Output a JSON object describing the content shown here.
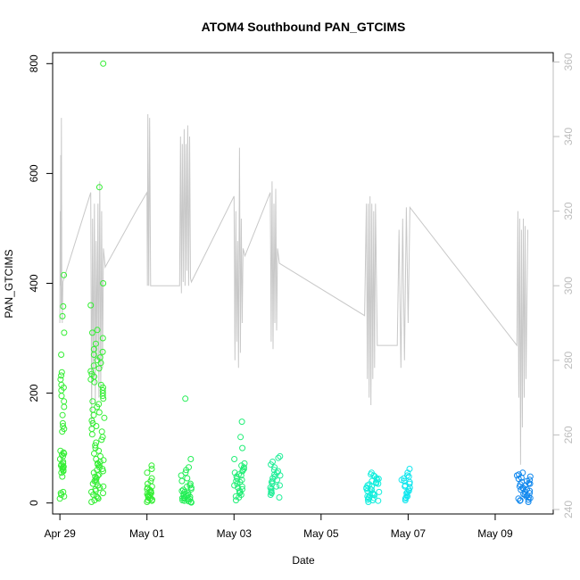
{
  "chart_data": {
    "type": "scatter",
    "title": "ATOM4 Southbound PAN_GTCIMS",
    "xlabel": "Date",
    "ylabel": "PAN_GTCIMS",
    "x_axis": {
      "type": "date",
      "range": [
        "2016-04-28T20:00",
        "2016-05-10T08:00"
      ],
      "ticks": [
        {
          "date": "2016-04-29",
          "label": "Apr 29"
        },
        {
          "date": "2016-05-01",
          "label": "May 01"
        },
        {
          "date": "2016-05-03",
          "label": "May 03"
        },
        {
          "date": "2016-05-05",
          "label": "May 05"
        },
        {
          "date": "2016-05-07",
          "label": "May 07"
        },
        {
          "date": "2016-05-09",
          "label": "May 09"
        }
      ]
    },
    "y_left": {
      "range": [
        -20,
        820
      ],
      "ticks": [
        0,
        200,
        400,
        600,
        800
      ]
    },
    "y_right": {
      "range": [
        238.8,
        362.5
      ],
      "ticks": [
        240,
        260,
        280,
        300,
        320,
        340,
        360
      ],
      "color": "#bdbdbd"
    },
    "grid": false,
    "legend": "none",
    "point_marker": "open-circle",
    "clusters": [
      {
        "start": "2016-04-29T00:00",
        "end": "2016-04-29T02:30",
        "color": "#33ee33",
        "values": [
          8,
          12,
          15,
          18,
          20,
          48,
          55,
          58,
          60,
          62,
          64,
          65,
          66,
          68,
          70,
          72,
          75,
          80,
          85,
          88,
          90,
          92,
          95,
          130,
          135,
          140,
          145,
          160,
          175,
          185,
          195,
          205,
          210,
          215,
          225,
          232,
          238,
          270,
          310,
          340,
          358,
          415
        ]
      },
      {
        "start": "2016-04-29T17:00",
        "end": "2016-04-30T00:30",
        "color": "#33ee33",
        "values": [
          2,
          5,
          8,
          10,
          12,
          15,
          18,
          20,
          22,
          25,
          28,
          30,
          32,
          35,
          38,
          40,
          42,
          45,
          48,
          50,
          52,
          55,
          58,
          60,
          62,
          65,
          68,
          70,
          72,
          75,
          78,
          80,
          85,
          90,
          95,
          100,
          105,
          110,
          115,
          120,
          125,
          130,
          135,
          140,
          145,
          150,
          155,
          160,
          165,
          170,
          175,
          180,
          185,
          190,
          195,
          200,
          205,
          210,
          215,
          220,
          225,
          230,
          235,
          240,
          245,
          250,
          255,
          260,
          265,
          270,
          275,
          280,
          290,
          300,
          310,
          315,
          360,
          400,
          575,
          800
        ]
      },
      {
        "start": "2016-05-01T00:00",
        "end": "2016-05-01T03:00",
        "color": "#33ee33",
        "values": [
          2,
          4,
          5,
          6,
          8,
          9,
          10,
          12,
          14,
          15,
          16,
          18,
          20,
          22,
          24,
          25,
          28,
          30,
          35,
          40,
          45,
          55,
          62,
          68
        ]
      },
      {
        "start": "2016-05-01T18:00",
        "end": "2016-05-02T00:30",
        "color": "#22ee55",
        "values": [
          1,
          2,
          3,
          4,
          5,
          6,
          7,
          8,
          9,
          10,
          11,
          12,
          13,
          14,
          15,
          16,
          18,
          20,
          22,
          24,
          25,
          28,
          30,
          32,
          35,
          40,
          45,
          50,
          55,
          60,
          65,
          80,
          190
        ]
      },
      {
        "start": "2016-05-03T00:00",
        "end": "2016-05-03T06:00",
        "color": "#22ee77",
        "values": [
          5,
          10,
          12,
          15,
          18,
          20,
          22,
          25,
          28,
          30,
          32,
          35,
          38,
          40,
          42,
          45,
          48,
          50,
          52,
          55,
          58,
          60,
          62,
          65,
          68,
          72,
          80,
          100,
          120,
          148
        ]
      },
      {
        "start": "2016-05-03T20:00",
        "end": "2016-05-04T01:30",
        "color": "#22ee99",
        "values": [
          10,
          15,
          18,
          20,
          22,
          25,
          28,
          30,
          32,
          35,
          38,
          40,
          42,
          45,
          48,
          50,
          52,
          55,
          58,
          60,
          65,
          70,
          75,
          82,
          85
        ]
      },
      {
        "start": "2016-05-06T01:00",
        "end": "2016-05-06T08:00",
        "color": "#11eedd",
        "values": [
          2,
          4,
          5,
          6,
          8,
          9,
          10,
          12,
          14,
          15,
          16,
          18,
          20,
          22,
          24,
          25,
          26,
          28,
          30,
          32,
          34,
          35,
          36,
          38,
          40,
          42,
          44,
          45,
          48,
          50,
          52,
          55
        ]
      },
      {
        "start": "2016-05-06T20:00",
        "end": "2016-05-07T01:00",
        "color": "#11e6ee",
        "values": [
          5,
          8,
          10,
          12,
          15,
          18,
          20,
          22,
          25,
          28,
          30,
          32,
          35,
          38,
          40,
          42,
          45,
          48,
          50,
          55,
          62
        ]
      },
      {
        "start": "2016-05-09T12:00",
        "end": "2016-05-09T20:00",
        "color": "#1188ee",
        "values": [
          2,
          4,
          5,
          6,
          8,
          9,
          10,
          12,
          14,
          15,
          16,
          18,
          20,
          22,
          24,
          25,
          26,
          28,
          30,
          32,
          34,
          35,
          36,
          38,
          40,
          42,
          44,
          46,
          48,
          50,
          52,
          55
        ]
      }
    ],
    "line_series": {
      "axis": "right",
      "color": "#c8c8c8",
      "points": [
        [
          "2016-04-29T00:00",
          290
        ],
        [
          "2016-04-29T00:10",
          320
        ],
        [
          "2016-04-29T00:20",
          300
        ],
        [
          "2016-04-29T00:30",
          335
        ],
        [
          "2016-04-29T00:40",
          295
        ],
        [
          "2016-04-29T00:50",
          345
        ],
        [
          "2016-04-29T01:05",
          300
        ],
        [
          "2016-04-29T01:20",
          290
        ],
        [
          "2016-04-29T01:40",
          301
        ],
        [
          "2016-04-29T17:00",
          325
        ],
        [
          "2016-04-29T17:30",
          262
        ],
        [
          "2016-04-29T18:00",
          318
        ],
        [
          "2016-04-29T18:30",
          275
        ],
        [
          "2016-04-29T19:00",
          322
        ],
        [
          "2016-04-29T19:30",
          268
        ],
        [
          "2016-04-29T20:00",
          312
        ],
        [
          "2016-04-29T20:30",
          280
        ],
        [
          "2016-04-29T21:00",
          322
        ],
        [
          "2016-04-29T21:30",
          270
        ],
        [
          "2016-04-29T22:00",
          328
        ],
        [
          "2016-04-29T22:30",
          272
        ],
        [
          "2016-04-29T23:00",
          320
        ],
        [
          "2016-04-29T23:30",
          278
        ],
        [
          "2016-04-30T00:00",
          310
        ],
        [
          "2016-04-30T01:00",
          305
        ],
        [
          "2016-04-30T18:00",
          320
        ],
        [
          "2016-05-01T00:00",
          325
        ],
        [
          "2016-05-01T00:15",
          300
        ],
        [
          "2016-05-01T00:30",
          346
        ],
        [
          "2016-05-01T01:00",
          300
        ],
        [
          "2016-05-01T01:30",
          345
        ],
        [
          "2016-05-01T02:00",
          300
        ],
        [
          "2016-05-01T15:00",
          300
        ],
        [
          "2016-05-01T18:00",
          300
        ],
        [
          "2016-05-01T18:30",
          340
        ],
        [
          "2016-05-01T19:00",
          298
        ],
        [
          "2016-05-01T19:30",
          338
        ],
        [
          "2016-05-01T20:00",
          301
        ],
        [
          "2016-05-01T20:30",
          342
        ],
        [
          "2016-05-01T21:00",
          300
        ],
        [
          "2016-05-01T21:30",
          338
        ],
        [
          "2016-05-01T22:00",
          304
        ],
        [
          "2016-05-01T22:30",
          343
        ],
        [
          "2016-05-01T23:00",
          300
        ],
        [
          "2016-05-01T23:30",
          340
        ],
        [
          "2016-05-02T00:00",
          302
        ],
        [
          "2016-05-02T00:30",
          301
        ],
        [
          "2016-05-03T00:00",
          324
        ],
        [
          "2016-05-03T00:30",
          280
        ],
        [
          "2016-05-03T01:00",
          320
        ],
        [
          "2016-05-03T01:30",
          285
        ],
        [
          "2016-05-03T02:00",
          312
        ],
        [
          "2016-05-03T02:30",
          278
        ],
        [
          "2016-05-03T03:00",
          337
        ],
        [
          "2016-05-03T03:30",
          282
        ],
        [
          "2016-05-03T04:00",
          318
        ],
        [
          "2016-05-03T04:30",
          290
        ],
        [
          "2016-05-03T05:00",
          310
        ],
        [
          "2016-05-03T06:00",
          308
        ],
        [
          "2016-05-03T20:00",
          325
        ],
        [
          "2016-05-03T20:30",
          285
        ],
        [
          "2016-05-03T21:00",
          328
        ],
        [
          "2016-05-03T21:30",
          283
        ],
        [
          "2016-05-03T22:00",
          322
        ],
        [
          "2016-05-03T22:30",
          290
        ],
        [
          "2016-05-03T23:00",
          326
        ],
        [
          "2016-05-03T23:30",
          288
        ],
        [
          "2016-05-04T00:00",
          310
        ],
        [
          "2016-05-04T01:00",
          306
        ],
        [
          "2016-05-06T00:00",
          292
        ],
        [
          "2016-05-06T01:00",
          322
        ],
        [
          "2016-05-06T01:30",
          275
        ],
        [
          "2016-05-06T02:00",
          322
        ],
        [
          "2016-05-06T02:30",
          270
        ],
        [
          "2016-05-06T03:00",
          324
        ],
        [
          "2016-05-06T03:30",
          268
        ],
        [
          "2016-05-06T04:00",
          322
        ],
        [
          "2016-05-06T04:30",
          275
        ],
        [
          "2016-05-06T05:00",
          320
        ],
        [
          "2016-05-06T05:30",
          278
        ],
        [
          "2016-05-06T06:00",
          322
        ],
        [
          "2016-05-06T07:00",
          284
        ],
        [
          "2016-05-06T18:00",
          284
        ],
        [
          "2016-05-06T19:00",
          315
        ],
        [
          "2016-05-06T20:00",
          278
        ],
        [
          "2016-05-06T21:00",
          318
        ],
        [
          "2016-05-06T22:00",
          280
        ],
        [
          "2016-05-06T23:00",
          321
        ],
        [
          "2016-05-07T00:00",
          290
        ],
        [
          "2016-05-07T01:00",
          321
        ],
        [
          "2016-05-09T12:00",
          284
        ],
        [
          "2016-05-09T12:30",
          320
        ],
        [
          "2016-05-09T13:00",
          270
        ],
        [
          "2016-05-09T13:30",
          318
        ],
        [
          "2016-05-09T14:00",
          252
        ],
        [
          "2016-05-09T14:30",
          315
        ],
        [
          "2016-05-09T15:00",
          262
        ],
        [
          "2016-05-09T15:30",
          318
        ],
        [
          "2016-05-09T16:00",
          270
        ],
        [
          "2016-05-09T16:30",
          316
        ],
        [
          "2016-05-09T17:00",
          275
        ],
        [
          "2016-05-09T18:00",
          315
        ]
      ]
    }
  }
}
